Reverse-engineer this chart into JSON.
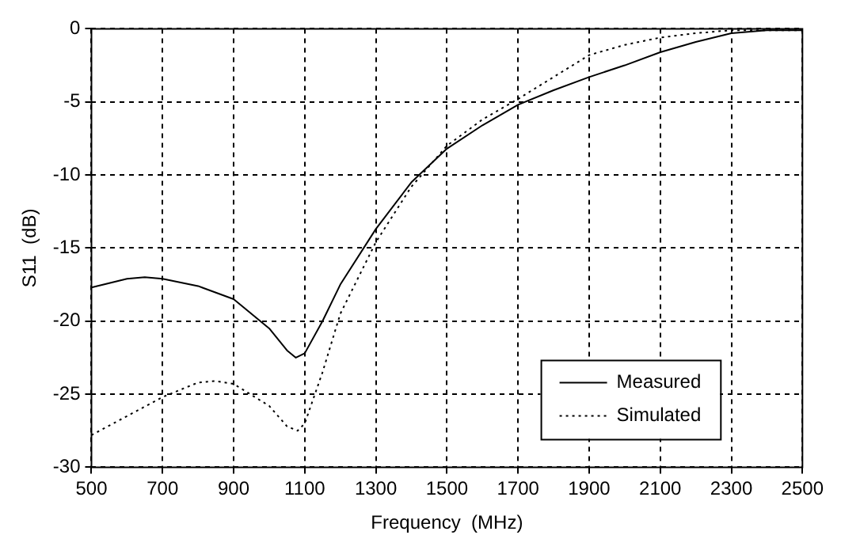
{
  "chart_data": {
    "type": "line",
    "xlabel": "Frequency  (MHz)",
    "ylabel": "S11  (dB)",
    "xlim": [
      500,
      2500
    ],
    "ylim": [
      -30,
      0
    ],
    "xticks": [
      500,
      700,
      900,
      1100,
      1300,
      1500,
      1700,
      1900,
      2100,
      2300,
      2500
    ],
    "yticks": [
      -30,
      -25,
      -20,
      -15,
      -10,
      -5,
      0
    ],
    "grid": true,
    "legend": "bottom right",
    "marker": "none",
    "series": [
      {
        "name": "Measured",
        "color": "#000000",
        "line_style": "solid",
        "x": [
          500,
          600,
          650,
          700,
          800,
          900,
          1000,
          1050,
          1075,
          1100,
          1150,
          1200,
          1300,
          1400,
          1500,
          1600,
          1700,
          1800,
          1900,
          2000,
          2100,
          2200,
          2300,
          2400,
          2500
        ],
        "values": [
          -17.7,
          -17.1,
          -17.0,
          -17.1,
          -17.6,
          -18.5,
          -20.5,
          -22,
          -22.5,
          -22.2,
          -20,
          -17.5,
          -13.7,
          -10.5,
          -8.2,
          -6.6,
          -5.2,
          -4.2,
          -3.3,
          -2.5,
          -1.6,
          -0.9,
          -0.3,
          -0.1,
          -0.1
        ]
      },
      {
        "name": "Simulated",
        "color": "#000000",
        "line_style": "dotted",
        "x": [
          500,
          600,
          700,
          800,
          850,
          900,
          1000,
          1050,
          1080,
          1100,
          1150,
          1200,
          1300,
          1400,
          1500,
          1600,
          1700,
          1800,
          1900,
          2000,
          2100,
          2200,
          2300,
          2400,
          2500
        ],
        "values": [
          -27.8,
          -26.5,
          -25.2,
          -24.2,
          -24.1,
          -24.3,
          -25.8,
          -27.2,
          -27.5,
          -27,
          -23.5,
          -19.5,
          -14.6,
          -10.8,
          -8,
          -6.2,
          -4.8,
          -3.3,
          -1.8,
          -1.1,
          -0.6,
          -0.3,
          -0.1,
          -0.1,
          -0.1
        ]
      }
    ]
  }
}
